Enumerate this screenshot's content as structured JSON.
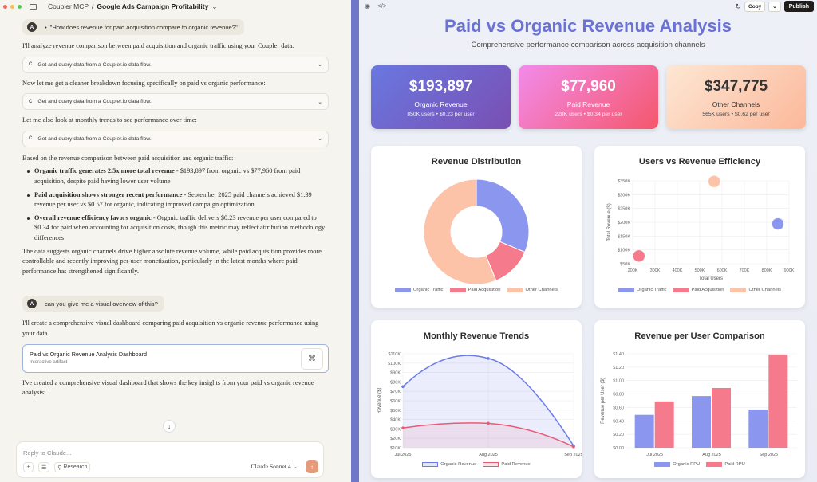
{
  "app": {
    "breadcrumb_project": "Coupler MCP",
    "breadcrumb_sep": "/",
    "breadcrumb_chat": "Google Ads Campaign Profitability"
  },
  "chat": {
    "user_avatar": "A",
    "msg1": "\"How does revenue for paid acquisition compare to organic revenue?\"",
    "p1": "I'll analyze revenue comparison between paid acquisition and organic traffic using your Coupler data.",
    "tool_label": "Get and query data from a Coupler.io data flow.",
    "tool_icon": "C",
    "p2": "Now let me get a cleaner breakdown focusing specifically on paid vs organic performance:",
    "p3": "Let me also look at monthly trends to see performance over time:",
    "p4": "Based on the revenue comparison between paid acquisition and organic traffic:",
    "b1_bold": "Organic traffic generates 2.5x more total revenue",
    "b1_rest": " - $193,897 from organic vs $77,960 from paid acquisition, despite paid having lower user volume",
    "b2_bold": "Paid acquisition shows stronger recent performance",
    "b2_rest": " - September 2025 paid channels achieved $1.39 revenue per user vs $0.57 for organic, indicating improved campaign optimization",
    "b3_bold": "Overall revenue efficiency favors organic",
    "b3_rest": " - Organic traffic delivers $0.23 revenue per user compared to $0.34 for paid when accounting for acquisition costs, though this metric may reflect attribution methodology differences",
    "p5": "The data suggests organic channels drive higher absolute revenue volume, while paid acquisition provides more controllable and recently improving per-user monetization, particularly in the latest months where paid performance has strengthened significantly.",
    "msg2": "can you give me a visual overview of this?",
    "p6": "I'll create a comprehensive visual dashboard comparing paid acquisition vs organic revenue performance using your data.",
    "artifact_title": "Paid vs Organic Revenue Analysis Dashboard",
    "artifact_sub": "Interactive artifact",
    "p7": "I've created a comprehensive visual dashboard that shows the key insights from your paid vs organic revenue analysis:",
    "composer_placeholder": "Reply to Claude...",
    "plus": "+",
    "tools_glyph": "⚲",
    "research_label": "Research",
    "model": "Claude Sonnet 4",
    "send": "↑",
    "scroll_down": "↓"
  },
  "toolbar": {
    "copy": "Copy",
    "publish": "Publish"
  },
  "dashboard": {
    "title": "Paid vs Organic Revenue Analysis",
    "subtitle": "Comprehensive performance comparison across acquisition channels",
    "kpis": [
      {
        "value": "$193,897",
        "label": "Organic Revenue",
        "sub": "850K users • $0.23 per user"
      },
      {
        "value": "$77,960",
        "label": "Paid Revenue",
        "sub": "228K users • $0.34 per user"
      },
      {
        "value": "$347,775",
        "label": "Other Channels",
        "sub": "565K users • $0.62 per user"
      }
    ],
    "colors": {
      "organic": "#8b97ee",
      "paid": "#f57a8c",
      "other": "#fcc3a8"
    }
  },
  "chart_data": [
    {
      "type": "pie",
      "title": "Revenue Distribution",
      "categories": [
        "Organic Traffic",
        "Paid Acquisition",
        "Other Channels"
      ],
      "values": [
        193897,
        77960,
        347775
      ]
    },
    {
      "type": "scatter",
      "title": "Users vs Revenue Efficiency",
      "xlabel": "Total Users",
      "ylabel": "Total Revenue ($)",
      "xlim": [
        200000,
        900000
      ],
      "ylim": [
        50000,
        350000
      ],
      "xticks": [
        "200K",
        "300K",
        "400K",
        "500K",
        "600K",
        "700K",
        "800K",
        "900K"
      ],
      "yticks": [
        "$50K",
        "$100K",
        "$150K",
        "$200K",
        "$250K",
        "$300K",
        "$350K"
      ],
      "series": [
        {
          "name": "Organic Traffic",
          "x": 850000,
          "y": 193897
        },
        {
          "name": "Paid Acquisition",
          "x": 228000,
          "y": 77960
        },
        {
          "name": "Other Channels",
          "x": 565000,
          "y": 347775
        }
      ]
    },
    {
      "type": "area",
      "title": "Monthly Revenue Trends",
      "ylabel": "Revenue ($)",
      "categories": [
        "Jul 2025",
        "Aug 2025",
        "Sep 2025"
      ],
      "ylim": [
        10000,
        110000
      ],
      "yticks": [
        "$10K",
        "$20K",
        "$30K",
        "$40K",
        "$50K",
        "$60K",
        "$70K",
        "$80K",
        "$90K",
        "$100K",
        "$110K"
      ],
      "series": [
        {
          "name": "Organic Revenue",
          "values": [
            75000,
            105000,
            12000
          ]
        },
        {
          "name": "Paid Revenue",
          "values": [
            31000,
            36000,
            11000
          ]
        }
      ]
    },
    {
      "type": "bar",
      "title": "Revenue per User Comparison",
      "ylabel": "Revenue per User ($)",
      "categories": [
        "Jul 2025",
        "Aug 2025",
        "Sep 2025"
      ],
      "ylim": [
        0,
        1.4
      ],
      "yticks": [
        "$0.00",
        "$0.20",
        "$0.40",
        "$0.60",
        "$0.80",
        "$1.00",
        "$1.20",
        "$1.40"
      ],
      "series": [
        {
          "name": "Organic RPU",
          "values": [
            0.49,
            0.77,
            0.57
          ]
        },
        {
          "name": "Paid RPU",
          "values": [
            0.69,
            0.89,
            1.39
          ]
        }
      ]
    }
  ]
}
